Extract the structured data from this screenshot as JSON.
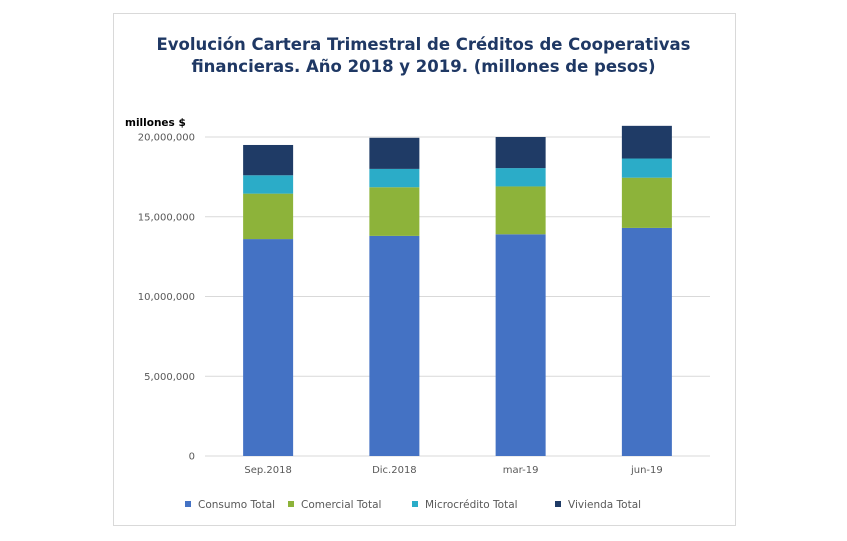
{
  "chart_data": {
    "type": "bar",
    "stacked": true,
    "title_lines": [
      "Evolución Cartera Trimestral de Créditos de Cooperativas",
      "financieras. Año 2018 y 2019. (millones de pesos)"
    ],
    "ylabel": "millones $",
    "xlabel": "",
    "categories": [
      "Sep.2018",
      "Dic.2018",
      "mar-19",
      "jun-19"
    ],
    "ylim": [
      0,
      20000000
    ],
    "yticks": [
      0,
      5000000,
      10000000,
      15000000,
      20000000
    ],
    "ytick_labels": [
      "0",
      "5,000,000",
      "10,000,000",
      "15,000,000",
      "20,000,000"
    ],
    "grid": true,
    "legend_position": "bottom",
    "series": [
      {
        "name": "Consumo Total",
        "color": "#4472c4",
        "values": [
          13600000,
          13800000,
          13900000,
          14300000
        ]
      },
      {
        "name": "Comercial Total",
        "color": "#8db33a",
        "values": [
          2850000,
          3050000,
          3000000,
          3150000
        ]
      },
      {
        "name": "Microcrédito Total",
        "color": "#2bacc8",
        "values": [
          1150000,
          1150000,
          1150000,
          1200000
        ]
      },
      {
        "name": "Vivienda Total",
        "color": "#1f3b66",
        "values": [
          1900000,
          1950000,
          1950000,
          2050000
        ]
      }
    ]
  }
}
